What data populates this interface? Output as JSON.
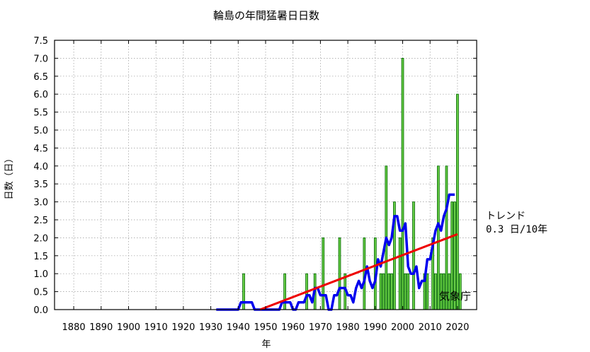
{
  "chart_data": {
    "type": "bar",
    "title": "輪島の年間猛暑日日数",
    "xlabel": "年",
    "ylabel": "日数（日）",
    "xlim": [
      1873,
      2027
    ],
    "ylim": [
      0,
      7.5
    ],
    "x_ticks": [
      1880,
      1890,
      1900,
      1910,
      1920,
      1930,
      1940,
      1950,
      1960,
      1970,
      1980,
      1990,
      2000,
      2010,
      2020
    ],
    "y_ticks": [
      0.0,
      0.5,
      1.0,
      1.5,
      2.0,
      2.5,
      3.0,
      3.5,
      4.0,
      4.5,
      5.0,
      5.5,
      6.0,
      6.5,
      7.0,
      7.5
    ],
    "grid": true,
    "colors": {
      "bar": "#66cc44",
      "bar_edge": "#006600",
      "moving_average": "#0000ee",
      "trend": "#ee0000"
    },
    "series": [
      {
        "kind": "bar",
        "x": [
          1942,
          1957,
          1965,
          1968,
          1971,
          1977,
          1979,
          1986,
          1990,
          1992,
          1993,
          1994,
          1995,
          1996,
          1997,
          1999,
          2000,
          2001,
          2002,
          2004,
          2008,
          2009,
          2011,
          2012,
          2013,
          2014,
          2015,
          2016,
          2017,
          2018,
          2019,
          2020,
          2021
        ],
        "values": [
          1,
          1,
          1,
          1,
          2,
          2,
          1,
          2,
          2,
          1,
          1,
          4,
          1,
          1,
          3,
          2,
          7,
          1,
          1,
          3,
          1,
          1,
          2,
          1,
          4,
          1,
          1,
          4,
          1,
          3,
          3,
          6,
          1
        ]
      },
      {
        "kind": "line",
        "x": [
          1932,
          1933,
          1934,
          1935,
          1936,
          1937,
          1938,
          1939,
          1940,
          1941,
          1942,
          1943,
          1944,
          1945,
          1946,
          1947,
          1948,
          1949,
          1950,
          1951,
          1952,
          1953,
          1954,
          1955,
          1956,
          1957,
          1958,
          1959,
          1960,
          1961,
          1962,
          1963,
          1964,
          1965,
          1966,
          1967,
          1968,
          1969,
          1970,
          1971,
          1972,
          1973,
          1974,
          1975,
          1976,
          1977,
          1978,
          1979,
          1980,
          1981,
          1982,
          1983,
          1984,
          1985,
          1986,
          1987,
          1988,
          1989,
          1990,
          1991,
          1992,
          1993,
          1994,
          1995,
          1996,
          1997,
          1998,
          1999,
          2000,
          2001,
          2002,
          2003,
          2004,
          2005,
          2006,
          2007,
          2008,
          2009,
          2010,
          2011,
          2012,
          2013,
          2014,
          2015,
          2016,
          2017,
          2018,
          2019
        ],
        "values": [
          0,
          0,
          0,
          0,
          0,
          0,
          0,
          0,
          0,
          0.2,
          0.2,
          0.2,
          0.2,
          0.2,
          0,
          0,
          0,
          0,
          0,
          0,
          0,
          0,
          0,
          0,
          0.2,
          0.2,
          0.2,
          0.2,
          0,
          0,
          0.2,
          0.2,
          0.2,
          0.4,
          0.4,
          0.2,
          0.6,
          0.6,
          0.4,
          0.4,
          0.4,
          0,
          0,
          0.4,
          0.4,
          0.6,
          0.6,
          0.6,
          0.4,
          0.4,
          0.2,
          0.6,
          0.8,
          0.6,
          0.8,
          1.2,
          0.8,
          0.6,
          0.8,
          1.4,
          1.2,
          1.6,
          2.0,
          1.8,
          2.0,
          2.6,
          2.6,
          2.2,
          2.2,
          2.4,
          1.2,
          1.0,
          1.0,
          1.2,
          0.6,
          0.8,
          0.8,
          1.4,
          1.4,
          1.8,
          2.2,
          2.4,
          2.2,
          2.6,
          2.8,
          3.2,
          3.2,
          3.2
        ]
      },
      {
        "kind": "trend",
        "x": [
          1948,
          2020
        ],
        "values": [
          0,
          2.1
        ]
      }
    ],
    "trend_label": "トレンド",
    "trend_value": "0.3 日/10年",
    "credit": "気象庁"
  }
}
